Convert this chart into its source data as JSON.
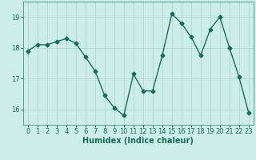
{
  "x": [
    0,
    1,
    2,
    3,
    4,
    5,
    6,
    7,
    8,
    9,
    10,
    11,
    12,
    13,
    14,
    15,
    16,
    17,
    18,
    19,
    20,
    21,
    22,
    23
  ],
  "y": [
    17.9,
    18.1,
    18.1,
    18.2,
    18.3,
    18.15,
    17.7,
    17.25,
    16.45,
    16.05,
    15.8,
    17.15,
    16.6,
    16.6,
    17.75,
    19.1,
    18.8,
    18.35,
    17.75,
    18.6,
    19.0,
    18.0,
    17.05,
    15.9
  ],
  "line_color": "#1a6b5a",
  "marker": "D",
  "marker_size": 2.5,
  "bg_color": "#cceee8",
  "grid_color": "#b0d8d0",
  "xlabel": "Humidex (Indice chaleur)",
  "xlim": [
    -0.5,
    23.5
  ],
  "ylim": [
    15.5,
    19.5
  ],
  "yticks": [
    16,
    17,
    18,
    19
  ],
  "xticks": [
    0,
    1,
    2,
    3,
    4,
    5,
    6,
    7,
    8,
    9,
    10,
    11,
    12,
    13,
    14,
    15,
    16,
    17,
    18,
    19,
    20,
    21,
    22,
    23
  ],
  "xlabel_fontsize": 7,
  "tick_fontsize": 6,
  "line_width": 1.0
}
